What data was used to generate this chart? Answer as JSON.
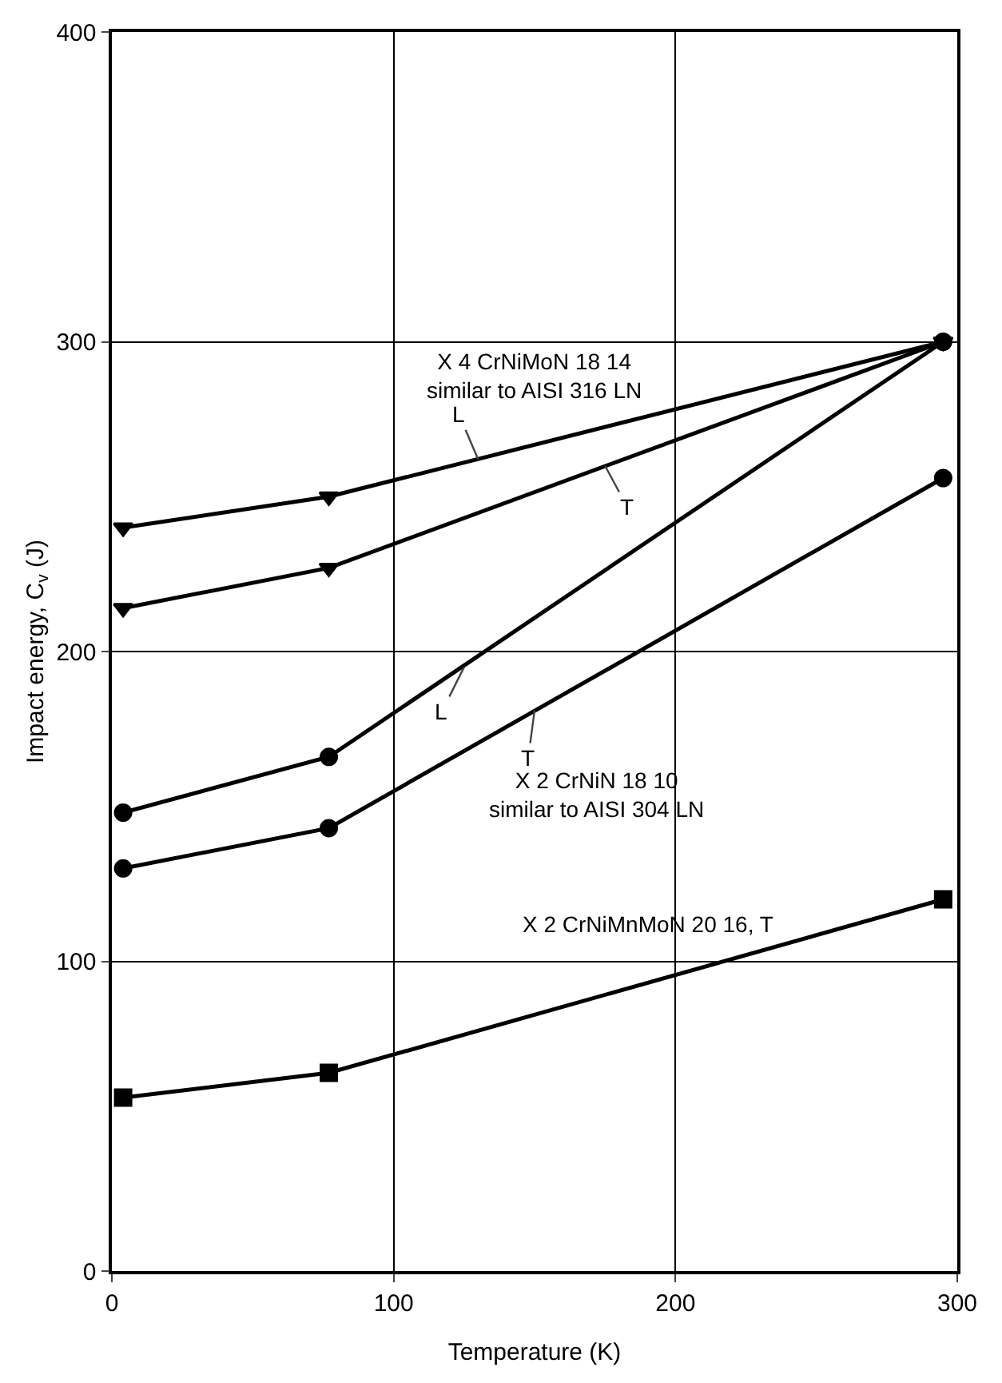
{
  "chart_data": {
    "type": "line",
    "xlabel": "Temperature (K)",
    "ylabel": "Impact energy, C$_{v}$ (J)",
    "x": [
      4,
      77,
      295
    ],
    "series": [
      {
        "color": "#000000",
        "values": [
          240,
          250,
          300
        ],
        "marker": "triangle"
      },
      {
        "color": "#000000",
        "values": [
          214,
          227,
          300
        ],
        "marker": "triangle"
      },
      {
        "color": "#000000",
        "values": [
          148,
          166,
          300
        ],
        "marker": "circle"
      },
      {
        "color": "#000000",
        "values": [
          130,
          143,
          256
        ],
        "marker": "circle"
      },
      {
        "color": "#000000",
        "values": [
          56,
          64,
          120
        ],
        "marker": "square"
      }
    ],
    "xlim": [
      0,
      300
    ],
    "xticks": [
      0,
      100,
      200,
      300
    ],
    "ylim": [
      0,
      400
    ],
    "yticks": [
      0,
      100,
      200,
      300,
      400
    ],
    "grid": true,
    "line_style": "solid",
    "annotations": [
      "X 4 CrNiMoN 18 14\nsimilar to AISI 316 LN",
      {
        "text": "L",
        "x": 130,
        "y": 262
      },
      {
        "text": "T",
        "x": 175,
        "y": 260
      },
      {
        "text": "L",
        "x": 125,
        "y": 195
      },
      {
        "text": "T",
        "x": 150,
        "y": 181
      },
      "X 2 CrNiN 18 10\nsimilar to AISI 304 LN",
      "X 2 CrNiMnMoN 20 16, T"
    ]
  }
}
